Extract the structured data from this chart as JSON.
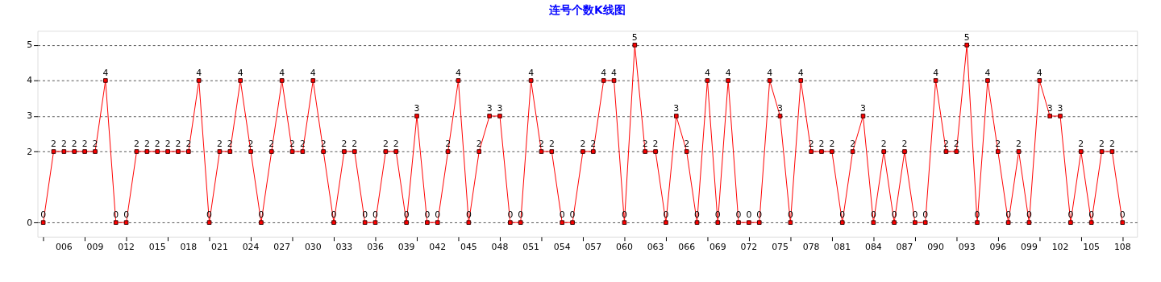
{
  "chart_data": {
    "type": "line",
    "title": "连号个数K线图",
    "categories": [
      null,
      null,
      "006",
      null,
      null,
      "009",
      null,
      null,
      "012",
      null,
      null,
      "015",
      null,
      null,
      "018",
      null,
      null,
      "021",
      null,
      null,
      "024",
      null,
      null,
      "027",
      null,
      null,
      "030",
      null,
      null,
      "033",
      null,
      null,
      "036",
      null,
      null,
      "039",
      null,
      null,
      "042",
      null,
      null,
      "045",
      null,
      null,
      "048",
      null,
      null,
      "051",
      null,
      null,
      "054",
      null,
      null,
      "057",
      null,
      null,
      "060",
      null,
      null,
      "063",
      null,
      null,
      "066",
      null,
      null,
      "069",
      null,
      null,
      "072",
      null,
      null,
      "075",
      null,
      null,
      "078",
      null,
      null,
      "081",
      null,
      null,
      "084",
      null,
      null,
      "087",
      null,
      null,
      "090",
      null,
      null,
      "093",
      null,
      null,
      "096",
      null,
      null,
      "099",
      null,
      null,
      "102",
      null,
      null,
      "105",
      null,
      null,
      "108"
    ],
    "series": [
      {
        "color": "#ff0000",
        "values": [
          0,
          2,
          2,
          2,
          2,
          2,
          4,
          0,
          0,
          2,
          2,
          2,
          2,
          2,
          2,
          4,
          0,
          2,
          2,
          4,
          2,
          0,
          2,
          4,
          2,
          2,
          4,
          2,
          0,
          2,
          2,
          0,
          0,
          2,
          2,
          0,
          3,
          0,
          0,
          2,
          4,
          0,
          2,
          3,
          3,
          0,
          0,
          4,
          2,
          2,
          0,
          0,
          2,
          2,
          4,
          4,
          0,
          5,
          2,
          2,
          0,
          3,
          2,
          0,
          4,
          0,
          4,
          0,
          0,
          0,
          4,
          3,
          0,
          4,
          2,
          2,
          2,
          0,
          2,
          3,
          0,
          2,
          0,
          2,
          0,
          0,
          4,
          2,
          2,
          5,
          0,
          4,
          2,
          0,
          2,
          0,
          4,
          3,
          3,
          0,
          2,
          0,
          2,
          2,
          0
        ]
      }
    ],
    "ylim": [
      -0.4,
      5.4
    ],
    "yticks": [
      0,
      2,
      3,
      4,
      5
    ],
    "data_labels": true,
    "grid": "y",
    "line_style": "solid",
    "marker": "square",
    "legend": false
  }
}
